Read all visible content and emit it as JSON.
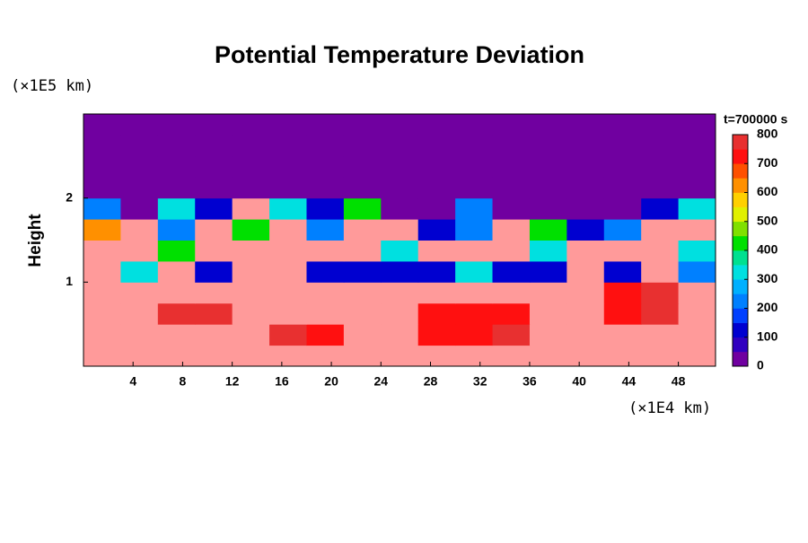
{
  "chart_data": {
    "type": "heatmap",
    "title": "Potential Temperature Deviation",
    "y_unit": "(×1E5 km)",
    "y_label": "Height",
    "x_unit": "(×1E4 km)",
    "time_label": "t=700000 s",
    "xlim": [
      0,
      51
    ],
    "ylim": [
      0,
      3
    ],
    "xticks": [
      4,
      8,
      12,
      16,
      20,
      24,
      28,
      32,
      36,
      40,
      44,
      48
    ],
    "yticks": [
      1,
      2
    ],
    "x_bins": [
      0,
      3,
      6,
      9,
      12,
      15,
      18,
      21,
      24,
      27,
      30,
      33,
      36,
      39,
      42,
      45,
      48,
      51
    ],
    "y_bins": [
      0,
      0.25,
      0.5,
      0.75,
      1,
      1.25,
      1.5,
      1.75,
      2,
      2.25,
      2.5,
      2.75,
      3
    ],
    "z": [
      [
        800,
        800,
        800,
        800,
        800,
        800,
        800,
        800,
        800,
        800,
        800,
        800,
        800,
        800,
        800,
        800,
        800
      ],
      [
        800,
        800,
        800,
        800,
        800,
        750,
        700,
        800,
        800,
        700,
        700,
        750,
        800,
        800,
        800,
        800,
        800
      ],
      [
        800,
        800,
        750,
        750,
        800,
        800,
        800,
        800,
        800,
        700,
        700,
        700,
        800,
        800,
        700,
        750,
        800
      ],
      [
        800,
        800,
        800,
        800,
        800,
        800,
        800,
        800,
        800,
        800,
        800,
        800,
        800,
        800,
        700,
        750,
        800
      ],
      [
        800,
        300,
        800,
        100,
        800,
        800,
        100,
        100,
        100,
        100,
        300,
        100,
        100,
        800,
        100,
        800,
        200
      ],
      [
        800,
        800,
        400,
        800,
        800,
        800,
        800,
        800,
        300,
        800,
        800,
        800,
        300,
        800,
        800,
        800,
        300
      ],
      [
        600,
        800,
        200,
        800,
        400,
        800,
        200,
        800,
        800,
        100,
        200,
        800,
        400,
        100,
        200,
        800,
        800
      ],
      [
        200,
        0,
        300,
        100,
        800,
        300,
        100,
        400,
        0,
        0,
        200,
        0,
        0,
        0,
        0,
        100,
        300
      ],
      [
        0,
        0,
        0,
        0,
        0,
        0,
        0,
        0,
        0,
        0,
        0,
        0,
        0,
        0,
        0,
        0,
        0
      ],
      [
        0,
        0,
        0,
        0,
        0,
        0,
        0,
        0,
        0,
        0,
        0,
        0,
        0,
        0,
        0,
        0,
        0
      ],
      [
        0,
        0,
        0,
        0,
        0,
        0,
        0,
        0,
        0,
        0,
        0,
        0,
        0,
        0,
        0,
        0,
        0
      ],
      [
        0,
        0,
        0,
        0,
        0,
        0,
        0,
        0,
        0,
        0,
        0,
        0,
        0,
        0,
        0,
        0,
        0
      ]
    ],
    "levels": [
      0,
      50,
      100,
      150,
      200,
      250,
      300,
      350,
      400,
      450,
      500,
      550,
      600,
      650,
      700,
      750,
      800
    ],
    "colors": [
      "#7000a0",
      "#3000c0",
      "#0000d0",
      "#0040ff",
      "#0080ff",
      "#00b0ff",
      "#00e0e0",
      "#00e090",
      "#00e000",
      "#80e000",
      "#e0f000",
      "#ffd000",
      "#ff9000",
      "#ff5000",
      "#ff1010",
      "#e83030",
      "#ff9a9a"
    ],
    "clim": [
      0,
      800
    ],
    "cticks": [
      0,
      100,
      200,
      300,
      400,
      500,
      600,
      700,
      800
    ]
  }
}
